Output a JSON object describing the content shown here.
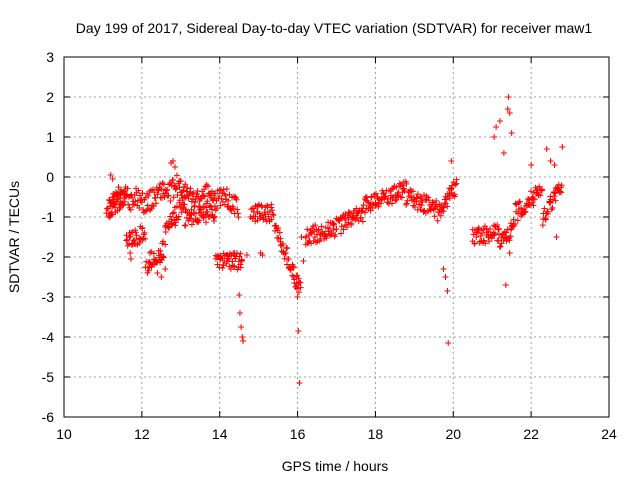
{
  "chart_data": {
    "type": "scatter",
    "title": "Day 199 of 2017, Sidereal Day-to-day VTEC variation (SDTVAR) for receiver maw1",
    "xlabel": "GPS time / hours",
    "ylabel": "SDTVAR / TECUs",
    "xlim": [
      10,
      24
    ],
    "ylim": [
      -6,
      3
    ],
    "xticks": [
      10,
      12,
      14,
      16,
      18,
      20,
      22,
      24
    ],
    "yticks": [
      -6,
      -5,
      -4,
      -3,
      -2,
      -1,
      0,
      1,
      2,
      3
    ],
    "grid": true,
    "marker": "+",
    "series": [
      {
        "name": "maw1",
        "color": "#ff0000",
        "trend": [
          [
            11.15,
            -0.8
          ],
          [
            11.3,
            -0.6
          ],
          [
            11.5,
            -0.4
          ],
          [
            11.7,
            -0.6
          ],
          [
            11.9,
            -0.5
          ],
          [
            12.1,
            -0.7
          ],
          [
            12.3,
            -0.5
          ],
          [
            12.5,
            -0.3
          ],
          [
            12.7,
            -0.4
          ],
          [
            12.9,
            -0.2
          ],
          [
            13.1,
            -0.4
          ],
          [
            13.3,
            -0.5
          ],
          [
            13.5,
            -0.6
          ],
          [
            13.7,
            -0.4
          ],
          [
            13.9,
            -0.6
          ],
          [
            14.1,
            -0.5
          ],
          [
            14.3,
            -0.6
          ],
          [
            14.5,
            -0.8
          ]
        ],
        "segments": [
          {
            "x0": 11.1,
            "x1": 11.6,
            "y0": -0.8,
            "y1": -0.5
          },
          {
            "x0": 11.6,
            "x1": 12.1,
            "y0": -1.6,
            "y1": -1.4
          },
          {
            "x0": 12.1,
            "x1": 12.6,
            "y0": -2.2,
            "y1": -1.8
          },
          {
            "x0": 12.6,
            "x1": 13.1,
            "y0": -1.4,
            "y1": -0.6
          },
          {
            "x0": 13.1,
            "x1": 13.9,
            "y0": -1.0,
            "y1": -0.9
          },
          {
            "x0": 13.9,
            "x1": 14.6,
            "y0": -2.1,
            "y1": -2.1
          },
          {
            "x0": 14.8,
            "x1": 15.4,
            "y0": -0.9,
            "y1": -0.9
          },
          {
            "x0": 15.4,
            "x1": 16.1,
            "y0": -1.2,
            "y1": -2.9
          },
          {
            "x0": 16.2,
            "x1": 16.9,
            "y0": -1.5,
            "y1": -1.3
          },
          {
            "x0": 16.9,
            "x1": 17.7,
            "y0": -1.3,
            "y1": -0.9
          },
          {
            "x0": 17.7,
            "x1": 18.8,
            "y0": -0.7,
            "y1": -0.3
          },
          {
            "x0": 18.8,
            "x1": 19.6,
            "y0": -0.5,
            "y1": -0.8
          },
          {
            "x0": 19.6,
            "x1": 20.1,
            "y0": -0.9,
            "y1": -0.2
          },
          {
            "x0": 20.5,
            "x1": 21.2,
            "y0": -1.5,
            "y1": -1.4
          },
          {
            "x0": 21.2,
            "x1": 21.6,
            "y0": -1.6,
            "y1": -1.2
          },
          {
            "x0": 21.6,
            "x1": 22.3,
            "y0": -0.9,
            "y1": -0.3
          },
          {
            "x0": 22.3,
            "x1": 22.8,
            "y0": -1.0,
            "y1": -0.2
          }
        ],
        "outliers": [
          [
            11.2,
            0.05
          ],
          [
            11.25,
            -0.05
          ],
          [
            11.7,
            -1.9
          ],
          [
            11.72,
            -2.05
          ],
          [
            12.4,
            -2.4
          ],
          [
            12.5,
            -2.5
          ],
          [
            12.6,
            -2.3
          ],
          [
            12.75,
            0.35
          ],
          [
            12.8,
            0.4
          ],
          [
            12.85,
            0.25
          ],
          [
            13.0,
            -0.1
          ],
          [
            14.5,
            -2.95
          ],
          [
            14.52,
            -3.4
          ],
          [
            14.55,
            -3.75
          ],
          [
            14.58,
            -4.0
          ],
          [
            14.6,
            -4.1
          ],
          [
            14.7,
            -1.95
          ],
          [
            15.05,
            -1.9
          ],
          [
            15.1,
            -1.95
          ],
          [
            15.9,
            -2.5
          ],
          [
            15.95,
            -2.75
          ],
          [
            16.0,
            -3.0
          ],
          [
            16.02,
            -3.85
          ],
          [
            16.05,
            -5.15
          ],
          [
            16.1,
            -1.5
          ],
          [
            16.15,
            -2.1
          ],
          [
            19.75,
            -2.3
          ],
          [
            19.8,
            -2.5
          ],
          [
            19.85,
            -2.85
          ],
          [
            19.87,
            -4.15
          ],
          [
            19.95,
            0.4
          ],
          [
            21.05,
            1.0
          ],
          [
            21.1,
            1.25
          ],
          [
            21.2,
            1.4
          ],
          [
            21.3,
            0.6
          ],
          [
            21.35,
            -2.7
          ],
          [
            21.4,
            1.7
          ],
          [
            21.42,
            2.0
          ],
          [
            21.45,
            1.6
          ],
          [
            21.5,
            1.1
          ],
          [
            21.45,
            -1.9
          ],
          [
            22.0,
            0.3
          ],
          [
            22.4,
            0.7
          ],
          [
            22.5,
            0.4
          ],
          [
            22.6,
            0.3
          ],
          [
            22.8,
            0.75
          ],
          [
            22.65,
            -1.5
          ]
        ]
      }
    ]
  }
}
